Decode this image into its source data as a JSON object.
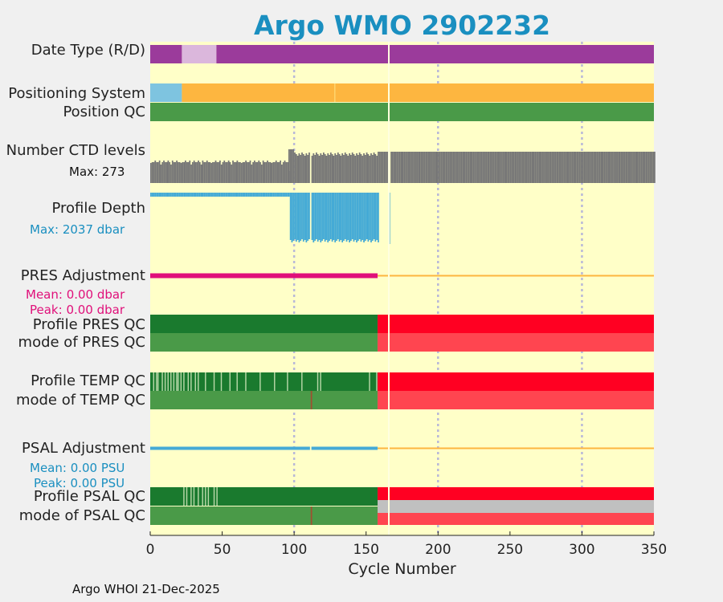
{
  "chart_data": {
    "type": "table",
    "title": "Argo WMO 2902232",
    "xlabel": "Cycle Number",
    "xlim": [
      0,
      350
    ],
    "xticks": [
      "0",
      "50",
      "100",
      "150",
      "200",
      "250",
      "300",
      "350"
    ],
    "gridlines_at": [
      100,
      200,
      300
    ],
    "rows": [
      {
        "label": "Date Type (R/D)",
        "segments": [
          [
            0,
            22,
            "#9b3b9b"
          ],
          [
            22,
            46,
            "#dbb7dc"
          ],
          [
            46,
            350,
            "#9b3b9b"
          ]
        ]
      },
      {
        "label": "Positioning System",
        "segments": [
          [
            0,
            22,
            "#7ec4e0"
          ],
          [
            22,
            350,
            "#fdb640"
          ]
        ]
      },
      {
        "label": "Position QC",
        "segments": [
          [
            0,
            350,
            "#4a9a48"
          ]
        ]
      },
      {
        "label": "Number CTD levels",
        "sub": "Max: 273",
        "max": 273
      },
      {
        "label": "Profile Depth",
        "sub": "Max: 2037 dbar",
        "max_dbar": 2037
      },
      {
        "label": "PRES Adjustment",
        "sub1": "Mean: 0.00 dbar",
        "sub2": "Peak: 0.00 dbar",
        "mean": 0.0,
        "peak": 0.0
      },
      {
        "label": "Profile PRES QC",
        "segments": [
          [
            0,
            158,
            "#1a7a2e"
          ],
          [
            158,
            350,
            "#ff0022"
          ]
        ]
      },
      {
        "label": "mode of PRES QC",
        "segments": [
          [
            0,
            158,
            "#4a9a48"
          ],
          [
            158,
            350,
            "#ff4550"
          ]
        ]
      },
      {
        "label": "Profile TEMP QC",
        "segments": [
          [
            0,
            158,
            "#1a7a2e"
          ],
          [
            158,
            350,
            "#ff0022"
          ]
        ]
      },
      {
        "label": "mode of TEMP QC",
        "segments": [
          [
            0,
            158,
            "#4a9a48"
          ],
          [
            158,
            350,
            "#ff4550"
          ]
        ]
      },
      {
        "label": "PSAL Adjustment",
        "sub1": "Mean: 0.00 PSU",
        "sub2": "Peak: 0.00 PSU",
        "mean": 0.0,
        "peak": 0.0
      },
      {
        "label": "Profile PSAL QC",
        "segments": [
          [
            0,
            158,
            "#1a7a2e"
          ],
          [
            158,
            350,
            "#ff0022"
          ]
        ]
      },
      {
        "label": "mode of PSAL QC",
        "segments": [
          [
            0,
            158,
            "#4a9a48"
          ],
          [
            158,
            350,
            "#ff4550"
          ]
        ]
      }
    ],
    "footer": "Argo WHOI 21-Dec-2025"
  },
  "colors": {
    "background": "#ffffc8",
    "accent_blue": "#1a8fc0",
    "magenta": "#e0107a",
    "gray_bars": "#777777"
  }
}
